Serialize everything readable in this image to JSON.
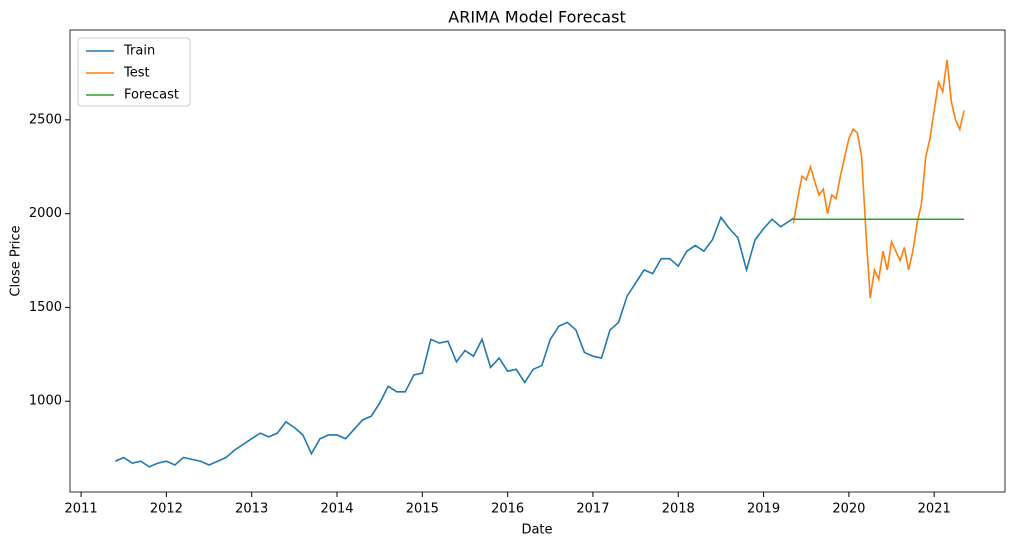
{
  "chart_data": {
    "type": "line",
    "title": "ARIMA Model Forecast",
    "x_label": "Date",
    "y_label": "Close Price",
    "xlim": [
      2010.87,
      2021.83
    ],
    "ylim": [
      516,
      2979
    ],
    "xticks": [
      2011,
      2012,
      2013,
      2014,
      2015,
      2016,
      2017,
      2018,
      2019,
      2020,
      2021
    ],
    "yticks": [
      1000,
      1500,
      2000,
      2500
    ],
    "legend": "upper left",
    "grid": false,
    "series": [
      {
        "name": "Train",
        "color": "#1f77b4",
        "x": [
          2011.4,
          2011.5,
          2011.6,
          2011.7,
          2011.8,
          2011.9,
          2012.0,
          2012.1,
          2012.2,
          2012.3,
          2012.4,
          2012.5,
          2012.6,
          2012.7,
          2012.8,
          2012.9,
          2013.0,
          2013.1,
          2013.2,
          2013.3,
          2013.4,
          2013.5,
          2013.6,
          2013.7,
          2013.8,
          2013.9,
          2014.0,
          2014.1,
          2014.2,
          2014.3,
          2014.4,
          2014.5,
          2014.6,
          2014.7,
          2014.8,
          2014.9,
          2015.0,
          2015.1,
          2015.2,
          2015.3,
          2015.4,
          2015.5,
          2015.6,
          2015.7,
          2015.8,
          2015.9,
          2016.0,
          2016.1,
          2016.2,
          2016.3,
          2016.4,
          2016.5,
          2016.6,
          2016.7,
          2016.8,
          2016.9,
          2017.0,
          2017.1,
          2017.2,
          2017.3,
          2017.4,
          2017.5,
          2017.6,
          2017.7,
          2017.8,
          2017.9,
          2018.0,
          2018.1,
          2018.2,
          2018.3,
          2018.4,
          2018.5,
          2018.6,
          2018.7,
          2018.8,
          2018.9,
          2019.0,
          2019.1,
          2019.2,
          2019.3,
          2019.35
        ],
        "values": [
          680,
          700,
          670,
          680,
          650,
          670,
          680,
          660,
          700,
          690,
          680,
          660,
          680,
          700,
          740,
          770,
          800,
          830,
          810,
          830,
          890,
          860,
          820,
          720,
          800,
          820,
          820,
          800,
          850,
          900,
          920,
          990,
          1080,
          1050,
          1050,
          1140,
          1150,
          1330,
          1310,
          1320,
          1210,
          1270,
          1240,
          1330,
          1180,
          1230,
          1160,
          1170,
          1100,
          1170,
          1190,
          1330,
          1400,
          1420,
          1380,
          1260,
          1240,
          1230,
          1380,
          1420,
          1560,
          1630,
          1700,
          1680,
          1760,
          1760,
          1720,
          1800,
          1830,
          1800,
          1860,
          1980,
          1920,
          1870,
          1700,
          1860,
          1920,
          1970,
          1930,
          1960,
          1975
        ]
      },
      {
        "name": "Test",
        "color": "#ff7f0e",
        "x": [
          2019.35,
          2019.4,
          2019.45,
          2019.5,
          2019.55,
          2019.6,
          2019.65,
          2019.7,
          2019.75,
          2019.8,
          2019.85,
          2019.9,
          2019.95,
          2020.0,
          2020.05,
          2020.1,
          2020.15,
          2020.2,
          2020.25,
          2020.3,
          2020.35,
          2020.4,
          2020.45,
          2020.5,
          2020.55,
          2020.6,
          2020.65,
          2020.7,
          2020.75,
          2020.8,
          2020.85,
          2020.9,
          2020.95,
          2021.0,
          2021.05,
          2021.1,
          2021.15,
          2021.2,
          2021.25,
          2021.3,
          2021.35
        ],
        "values": [
          1950,
          2080,
          2200,
          2180,
          2250,
          2170,
          2100,
          2130,
          2000,
          2100,
          2080,
          2200,
          2300,
          2400,
          2450,
          2430,
          2300,
          1900,
          1550,
          1700,
          1650,
          1800,
          1700,
          1850,
          1800,
          1750,
          1820,
          1700,
          1800,
          1950,
          2050,
          2300,
          2400,
          2550,
          2700,
          2650,
          2820,
          2600,
          2500,
          2450,
          2550
        ]
      },
      {
        "name": "Forecast",
        "color": "#2ca02c",
        "x": [
          2019.35,
          2021.35
        ],
        "values": [
          1970,
          1970
        ]
      }
    ]
  }
}
